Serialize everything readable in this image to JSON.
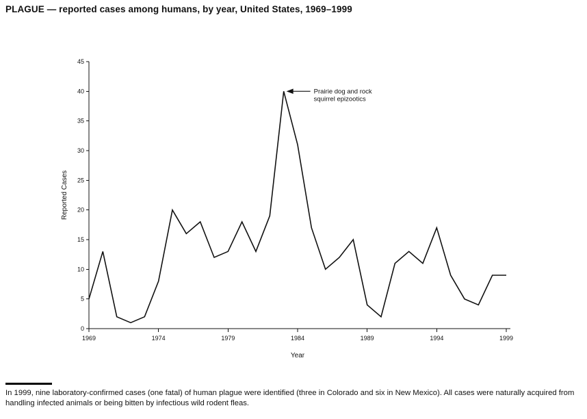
{
  "title": "PLAGUE — reported cases among humans, by year, United States, 1969–1999",
  "chart_data": {
    "type": "line",
    "title": "PLAGUE — reported cases among humans, by year, United States, 1969–1999",
    "xlabel": "Year",
    "ylabel": "Reported Cases",
    "xlim": [
      1969,
      1999
    ],
    "ylim": [
      0,
      45
    ],
    "ytick_interval": 5,
    "xticks": [
      1969,
      1974,
      1979,
      1984,
      1989,
      1994,
      1999
    ],
    "x": [
      1969,
      1970,
      1971,
      1972,
      1973,
      1974,
      1975,
      1976,
      1977,
      1978,
      1979,
      1980,
      1981,
      1982,
      1983,
      1984,
      1985,
      1986,
      1987,
      1988,
      1989,
      1990,
      1991,
      1992,
      1993,
      1994,
      1995,
      1996,
      1997,
      1998,
      1999
    ],
    "values": [
      5,
      13,
      2,
      1,
      2,
      8,
      20,
      16,
      18,
      12,
      13,
      18,
      13,
      19,
      40,
      31,
      17,
      10,
      12,
      15,
      4,
      2,
      11,
      13,
      11,
      17,
      9,
      5,
      4,
      9,
      9
    ],
    "grid": false,
    "legend": null,
    "line_color": "#111111",
    "annotation": {
      "text_line1": "Prairie dog and rock",
      "text_line2": "squirrel epizootics",
      "x": 1983,
      "y": 40
    }
  },
  "footnote": {
    "text": "In 1999, nine laboratory-confirmed cases (one fatal) of human plague were identified (three in Colorado and six in New Mexico). All cases were naturally acquired from handling infected animals or being bitten by infectious wild rodent fleas."
  }
}
